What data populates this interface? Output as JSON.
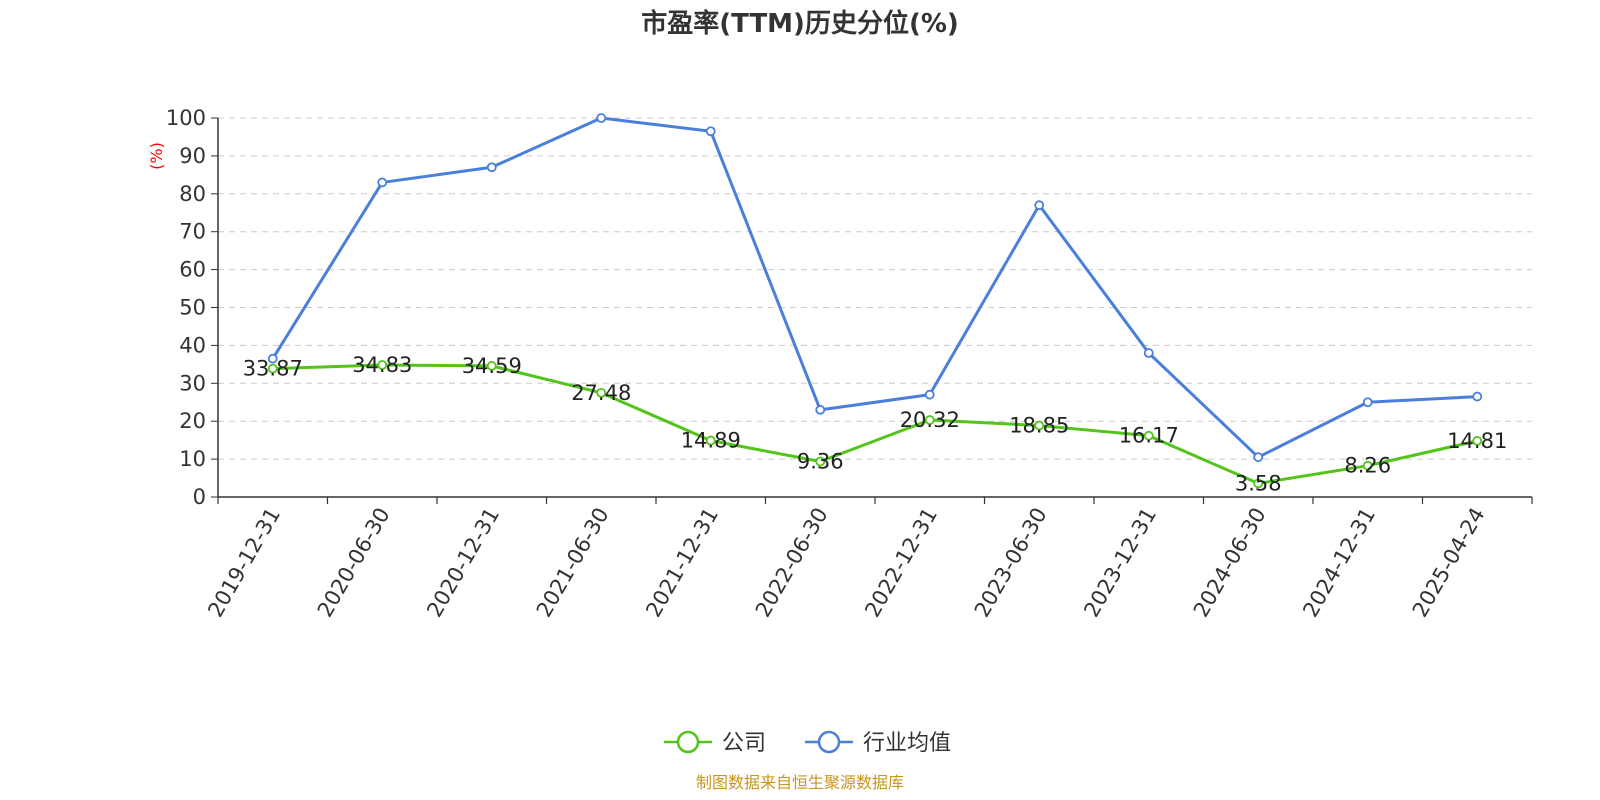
{
  "chart_data": {
    "type": "line",
    "title": "市盈率(TTM)历史分位(%)",
    "ylabel": "(%)",
    "xlabel": "",
    "categories": [
      "2019-12-31",
      "2020-06-30",
      "2020-12-31",
      "2021-06-30",
      "2021-12-31",
      "2022-06-30",
      "2022-12-31",
      "2023-06-30",
      "2023-12-31",
      "2024-06-30",
      "2024-12-31",
      "2025-04-24"
    ],
    "ylim": [
      0,
      100
    ],
    "yticks": [
      0,
      10,
      20,
      30,
      40,
      50,
      60,
      70,
      80,
      90,
      100
    ],
    "grid": true,
    "legend_position": "bottom-center",
    "series": [
      {
        "name": "公司",
        "color": "#52c41a",
        "values": [
          33.87,
          34.83,
          34.59,
          27.48,
          14.89,
          9.36,
          20.32,
          18.85,
          16.17,
          3.58,
          8.26,
          14.81
        ],
        "labels": [
          "33.87",
          "34.83",
          "34.59",
          "27.48",
          "14.89",
          "9.36",
          "20.32",
          "18.85",
          "16.17",
          "3.58",
          "8.26",
          "14.81"
        ]
      },
      {
        "name": "行业均值",
        "color": "#4a7fdc",
        "values": [
          36.5,
          83.0,
          87.0,
          100.0,
          96.5,
          23.0,
          27.0,
          77.0,
          38.0,
          10.5,
          25.0,
          26.5
        ]
      }
    ]
  },
  "source_note": "制图数据来自恒生聚源数据库",
  "colors": {
    "ylabel": "#ff0000",
    "source": "#c8961e",
    "grid": "#cccccc",
    "axis": "#333333"
  }
}
